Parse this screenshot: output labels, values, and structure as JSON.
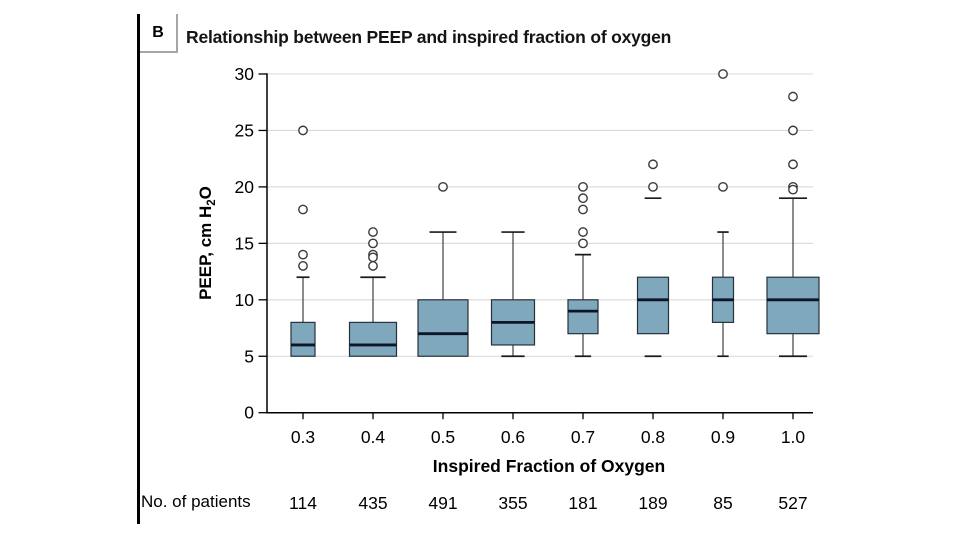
{
  "panel": {
    "label": "B",
    "title": "Relationship between PEEP and inspired fraction of oxygen"
  },
  "chart_data": {
    "type": "boxplot",
    "title": "Relationship between PEEP and inspired fraction of oxygen",
    "xlabel": "Inspired Fraction of Oxygen",
    "ylabel": "PEEP, cm H₂O",
    "ylabel_parts": {
      "pre": "PEEP, cm H",
      "sub": "2",
      "post": "O"
    },
    "ylim": [
      0,
      30
    ],
    "yticks": [
      0,
      5,
      10,
      15,
      20,
      25,
      30
    ],
    "grid": "horizontal-light",
    "legend": "none",
    "box_width_mode": "proportional-to-sqrt-n",
    "categories": [
      "0.3",
      "0.4",
      "0.5",
      "0.6",
      "0.7",
      "0.8",
      "0.9",
      "1.0"
    ],
    "boxes": [
      {
        "category": "0.3",
        "n": 114,
        "whisker_low": 5,
        "q1": 5,
        "median": 6,
        "q3": 8,
        "whisker_high": 12,
        "outliers": [
          13,
          14,
          18,
          25
        ],
        "whisker_line": true
      },
      {
        "category": "0.4",
        "n": 435,
        "whisker_low": 5,
        "q1": 5,
        "median": 6,
        "q3": 8,
        "whisker_high": 12,
        "outliers": [
          13,
          14,
          14,
          15,
          16
        ],
        "whisker_line": true
      },
      {
        "category": "0.5",
        "n": 491,
        "whisker_low": 5,
        "q1": 5,
        "median": 7,
        "q3": 10,
        "whisker_high": 16,
        "outliers": [
          20
        ],
        "whisker_line": true
      },
      {
        "category": "0.6",
        "n": 355,
        "whisker_low": 5,
        "q1": 6,
        "median": 8,
        "q3": 10,
        "whisker_high": 16,
        "outliers": [],
        "whisker_line": true
      },
      {
        "category": "0.7",
        "n": 181,
        "whisker_low": 5,
        "q1": 7,
        "median": 9,
        "q3": 10,
        "whisker_high": 14,
        "outliers": [
          15,
          16,
          18,
          19,
          20
        ],
        "whisker_line": true
      },
      {
        "category": "0.8",
        "n": 189,
        "whisker_low": 5,
        "q1": 7,
        "median": 10,
        "q3": 12,
        "whisker_high": 19,
        "outliers": [
          20,
          22
        ],
        "whisker_line": false
      },
      {
        "category": "0.9",
        "n": 85,
        "whisker_low": 5,
        "q1": 8,
        "median": 10,
        "q3": 12,
        "whisker_high": 16,
        "outliers": [
          20,
          30
        ],
        "whisker_line": true
      },
      {
        "category": "1.0",
        "n": 527,
        "whisker_low": 5,
        "q1": 7,
        "median": 10,
        "q3": 12,
        "whisker_high": 19,
        "outliers": [
          20,
          20,
          22,
          25,
          28
        ],
        "whisker_line": true
      }
    ],
    "colors": {
      "box_fill": "#7FA8BC",
      "box_border": "#26323B",
      "median": "#0D1626",
      "whisker": "#4D4D4D",
      "cap": "#1A1A1A",
      "outlier": "#3A3A3A",
      "grid": "#D8D8D8",
      "axis": "#000000",
      "text": "#000000"
    }
  },
  "footer": {
    "label": "No. of patients",
    "values": [
      "114",
      "435",
      "491",
      "355",
      "181",
      "189",
      "85",
      "527"
    ]
  }
}
